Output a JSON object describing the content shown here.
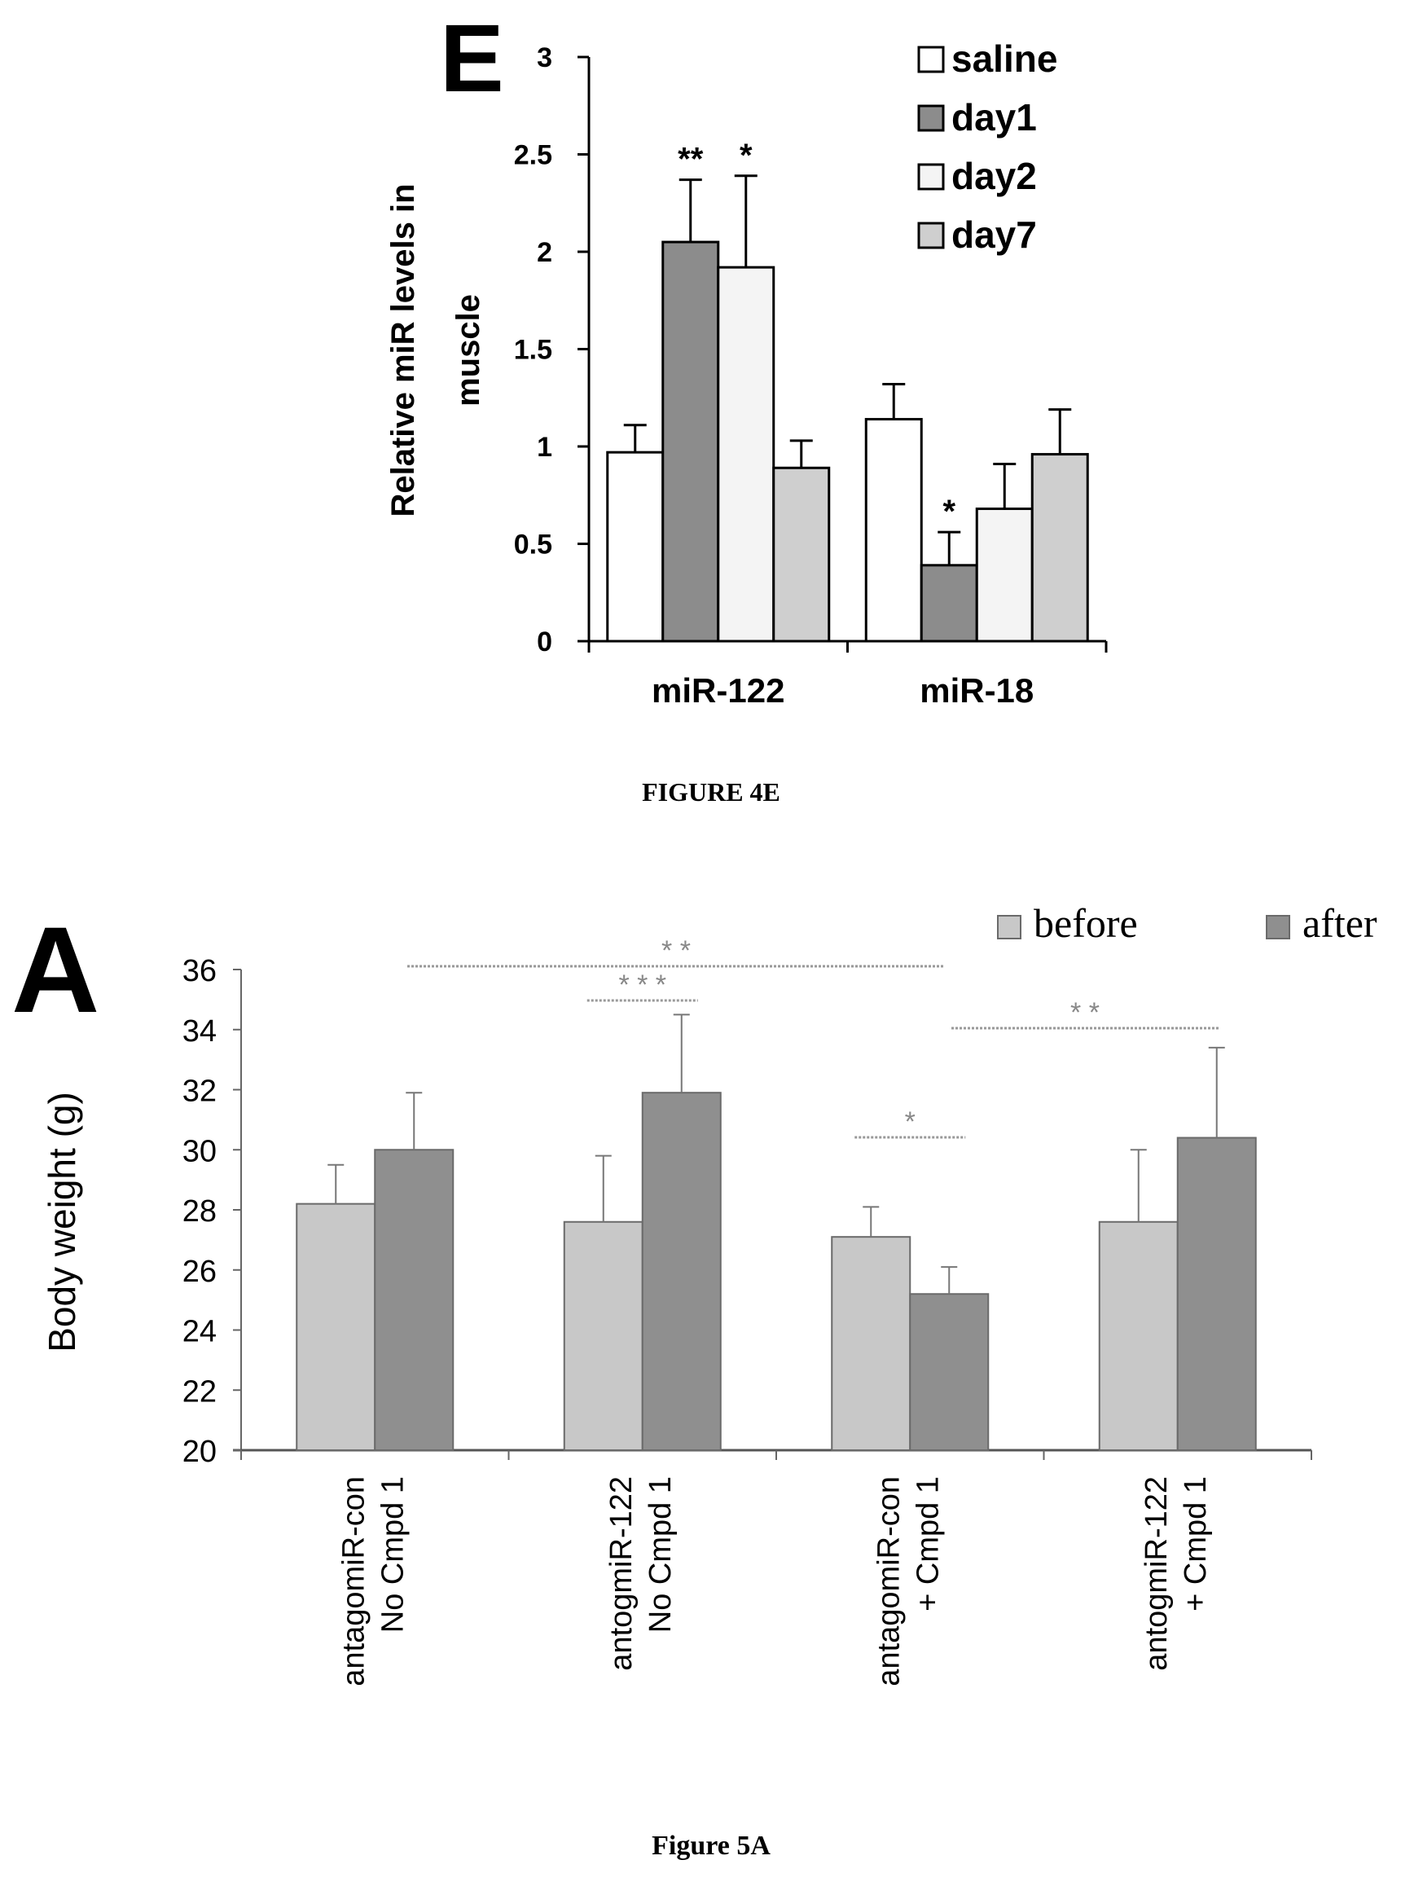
{
  "chart_data": [
    {
      "type": "bar",
      "panel_letter": "E",
      "figure_caption": "FIGURE 4E",
      "ylabel_lines": [
        "Relative miR levels in",
        "muscle"
      ],
      "ylim": [
        0,
        3
      ],
      "yticks": [
        "0",
        "0.5",
        "1",
        "1.5",
        "2",
        "2.5",
        "3"
      ],
      "categories": [
        "miR-122",
        "miR-18"
      ],
      "legend_position": "top-right",
      "series": [
        {
          "name": "saline",
          "values": [
            0.97,
            1.14
          ],
          "errors": [
            0.14,
            0.18
          ],
          "sig": [
            "",
            ""
          ],
          "color": "#ffffff"
        },
        {
          "name": "day1",
          "values": [
            2.05,
            0.39
          ],
          "errors": [
            0.32,
            0.17
          ],
          "sig": [
            "**",
            "*"
          ],
          "color": "#8c8c8c"
        },
        {
          "name": "day2",
          "values": [
            1.92,
            0.68
          ],
          "errors": [
            0.47,
            0.23
          ],
          "sig": [
            "*",
            ""
          ],
          "color": "#f4f4f4"
        },
        {
          "name": "day7",
          "values": [
            0.89,
            0.96
          ],
          "errors": [
            0.14,
            0.23
          ],
          "sig": [
            "",
            ""
          ],
          "color": "#cfcfcf"
        }
      ]
    },
    {
      "type": "bar",
      "panel_letter": "A",
      "figure_caption": "Figure 5A",
      "ylabel": "Body weight (g)",
      "ylim": [
        20,
        36
      ],
      "yticks": [
        "20",
        "22",
        "24",
        "26",
        "28",
        "30",
        "32",
        "34",
        "36"
      ],
      "legend_position": "top-right",
      "groups": [
        {
          "line1": "antagomiR-con",
          "line2": "No Cmpd 1"
        },
        {
          "line1": "antogmiR-122",
          "line2": "No Cmpd 1"
        },
        {
          "line1": "antagomiR-con",
          "line2": "+ Cmpd 1"
        },
        {
          "line1": "antogmiR-122",
          "line2": "+ Cmpd 1"
        }
      ],
      "series": [
        {
          "name": "before",
          "values": [
            28.2,
            27.6,
            27.1,
            27.6
          ],
          "errors": [
            1.3,
            2.2,
            1.0,
            2.4
          ],
          "color": "#c8c8c8"
        },
        {
          "name": "after",
          "values": [
            30.0,
            31.9,
            25.2,
            30.4
          ],
          "errors": [
            1.9,
            2.6,
            0.9,
            3.0
          ],
          "color": "#8f8f8f"
        }
      ],
      "significance": [
        {
          "label": "* *",
          "from_group": 0,
          "to_group": 2
        },
        {
          "label": "* * *",
          "from_group": 1,
          "to_group": 1
        },
        {
          "label": "*",
          "from_group": 2,
          "to_group": 2
        },
        {
          "label": "* *",
          "from_group": 2,
          "to_group": 3
        }
      ]
    }
  ]
}
